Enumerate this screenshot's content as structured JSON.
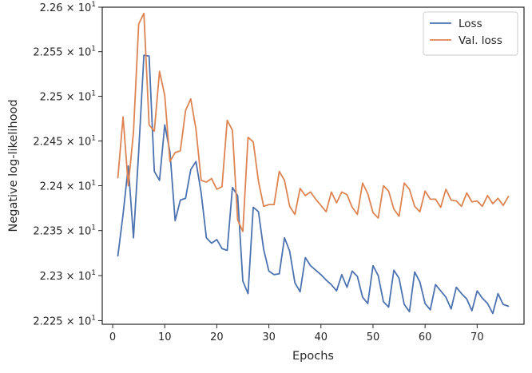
{
  "chart_data": {
    "type": "line",
    "xlabel": "Epochs",
    "ylabel": "Negative log-likelihood",
    "xlim": [
      -2,
      79
    ],
    "ylim": [
      22.246,
      22.6
    ],
    "y_scale": "log",
    "grid": false,
    "legend_position": "top-right",
    "x_ticks": [
      0,
      10,
      20,
      30,
      40,
      50,
      60,
      70
    ],
    "x_tick_labels": [
      "0",
      "10",
      "20",
      "30",
      "40",
      "50",
      "60",
      "70"
    ],
    "y_ticks": [
      22.25,
      22.3,
      22.35,
      22.4,
      22.45,
      22.5,
      22.55,
      22.6
    ],
    "y_tick_mantissas": [
      "2.225",
      "2.23",
      "2.235",
      "2.24",
      "2.245",
      "2.25",
      "2.255",
      "2.26"
    ],
    "y_tick_base": "10",
    "y_tick_exponent": "1",
    "x": [
      1,
      2,
      3,
      4,
      5,
      6,
      7,
      8,
      9,
      10,
      11,
      12,
      13,
      14,
      15,
      16,
      17,
      18,
      19,
      20,
      21,
      22,
      23,
      24,
      25,
      26,
      27,
      28,
      29,
      30,
      31,
      32,
      33,
      34,
      35,
      36,
      37,
      38,
      39,
      40,
      41,
      42,
      43,
      44,
      45,
      46,
      47,
      48,
      49,
      50,
      51,
      52,
      53,
      54,
      55,
      56,
      57,
      58,
      59,
      60,
      61,
      62,
      63,
      64,
      65,
      66,
      67,
      68,
      69,
      70,
      71,
      72,
      73,
      74,
      75,
      76
    ],
    "series": [
      {
        "name": "Loss",
        "color": "#4c72b0",
        "values": [
          22.322,
          22.368,
          22.422,
          22.342,
          22.438,
          22.546,
          22.545,
          22.416,
          22.406,
          22.468,
          22.438,
          22.361,
          22.384,
          22.386,
          22.418,
          22.427,
          22.392,
          22.342,
          22.336,
          22.34,
          22.33,
          22.328,
          22.398,
          22.389,
          22.294,
          22.28,
          22.376,
          22.371,
          22.329,
          22.305,
          22.301,
          22.302,
          22.342,
          22.327,
          22.292,
          22.282,
          22.32,
          22.311,
          22.306,
          22.301,
          22.295,
          22.29,
          22.283,
          22.301,
          22.287,
          22.305,
          22.299,
          22.276,
          22.269,
          22.311,
          22.3,
          22.271,
          22.265,
          22.306,
          22.297,
          22.268,
          22.26,
          22.304,
          22.293,
          22.269,
          22.262,
          22.29,
          22.283,
          22.276,
          22.263,
          22.287,
          22.28,
          22.274,
          22.261,
          22.283,
          22.275,
          22.269,
          22.258,
          22.28,
          22.268,
          22.266
        ]
      },
      {
        "name": "Val. loss",
        "color": "#dd8452",
        "values": [
          22.409,
          22.477,
          22.4,
          22.46,
          22.581,
          22.593,
          22.468,
          22.461,
          22.528,
          22.501,
          22.427,
          22.437,
          22.439,
          22.484,
          22.497,
          22.463,
          22.406,
          22.404,
          22.408,
          22.396,
          22.399,
          22.473,
          22.462,
          22.362,
          22.349,
          22.454,
          22.449,
          22.405,
          22.377,
          22.379,
          22.379,
          22.416,
          22.406,
          22.377,
          22.368,
          22.397,
          22.389,
          22.393,
          22.385,
          22.378,
          22.371,
          22.393,
          22.381,
          22.393,
          22.39,
          22.376,
          22.368,
          22.403,
          22.391,
          22.37,
          22.364,
          22.4,
          22.394,
          22.374,
          22.366,
          22.403,
          22.396,
          22.377,
          22.371,
          22.394,
          22.385,
          22.385,
          22.376,
          22.396,
          22.384,
          22.383,
          22.377,
          22.392,
          22.382,
          22.383,
          22.377,
          22.389,
          22.38,
          22.386,
          22.378,
          22.388
        ]
      }
    ]
  }
}
